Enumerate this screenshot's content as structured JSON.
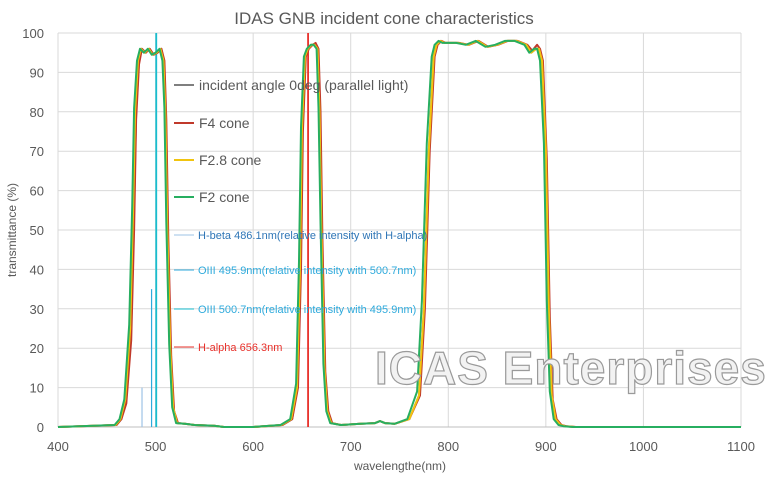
{
  "chart_data": {
    "type": "line",
    "title": "IDAS GNB incident cone characteristics",
    "xlabel": "wavelengthe(nm)",
    "ylabel": "transmittance (%)",
    "xlim": [
      400,
      1100
    ],
    "ylim": [
      0,
      100
    ],
    "xticks": [
      400,
      500,
      600,
      700,
      800,
      900,
      1000,
      1100
    ],
    "yticks": [
      0,
      10,
      20,
      30,
      40,
      50,
      60,
      70,
      80,
      90,
      100
    ],
    "grid": true,
    "legend_position": "inside-left",
    "watermark": "ICAS Enterprises",
    "series": [
      {
        "name": "incident angle 0deg (parallel light)",
        "color": "#7f7f7f",
        "x": [
          400,
          460,
          465,
          470,
          475,
          478,
          480,
          483,
          486,
          490,
          494,
          498,
          502,
          506,
          508,
          510,
          512,
          515,
          518,
          522,
          530,
          540,
          560,
          570,
          600,
          630,
          640,
          645,
          648,
          650,
          653,
          656,
          660,
          663,
          666,
          668,
          670,
          673,
          676,
          680,
          690,
          710,
          725,
          730,
          735,
          745,
          760,
          770,
          775,
          780,
          785,
          788,
          792,
          796,
          800,
          810,
          820,
          830,
          840,
          850,
          860,
          870,
          880,
          885,
          890,
          893,
          896,
          900,
          903,
          906,
          910,
          915,
          920,
          930,
          950,
          1100
        ],
        "y": [
          0,
          0.5,
          2,
          7,
          25,
          55,
          80,
          93,
          96,
          95,
          96,
          94.5,
          95,
          96,
          93,
          80,
          50,
          20,
          5,
          1,
          0.8,
          0.5,
          0.3,
          0,
          0,
          0.5,
          2,
          10,
          40,
          75,
          94,
          96,
          97,
          97,
          96,
          80,
          50,
          15,
          4,
          1,
          0.5,
          0.8,
          1,
          1.5,
          1,
          0.8,
          2,
          8,
          30,
          70,
          94,
          97,
          98,
          97.5,
          97.5,
          97.5,
          97,
          98,
          96.5,
          97,
          98,
          98,
          97,
          95,
          96,
          96,
          93,
          70,
          30,
          8,
          2,
          0.5,
          0.2,
          0,
          0,
          0
        ]
      },
      {
        "name": "F4 cone",
        "color": "#c0392b",
        "x": [
          400,
          460,
          465,
          470,
          475,
          478,
          480,
          483,
          486,
          490,
          494,
          498,
          502,
          506,
          509,
          511,
          513,
          516,
          519,
          523,
          530,
          540,
          560,
          570,
          600,
          630,
          640,
          646,
          649,
          651,
          654,
          657,
          661,
          664,
          667,
          669,
          671,
          674,
          677,
          681,
          690,
          710,
          725,
          730,
          735,
          745,
          760,
          771,
          776,
          781,
          786,
          789,
          793,
          797,
          801,
          811,
          821,
          831,
          841,
          851,
          861,
          871,
          881,
          886,
          891,
          894,
          897,
          901,
          904,
          907,
          911,
          916,
          921,
          931,
          950,
          1100
        ],
        "y": [
          0,
          0.5,
          2,
          6,
          22,
          50,
          78,
          92,
          96,
          95,
          96,
          94.5,
          95,
          96,
          93,
          78,
          48,
          18,
          4,
          1,
          0.8,
          0.5,
          0.3,
          0,
          0,
          0.5,
          2,
          10,
          40,
          75,
          94,
          96,
          97,
          97.5,
          96,
          80,
          48,
          14,
          4,
          1,
          0.5,
          0.8,
          1,
          1.5,
          1,
          0.8,
          2,
          8,
          30,
          70,
          94,
          97,
          98,
          97.5,
          97.5,
          97.5,
          97,
          98,
          96.5,
          97,
          98,
          98,
          97,
          95.5,
          97,
          96,
          93,
          68,
          28,
          7,
          2,
          0.5,
          0.2,
          0,
          0,
          0
        ]
      },
      {
        "name": "F2.8 cone",
        "color": "#f1c40f",
        "x": [
          400,
          459,
          464,
          469,
          474,
          477,
          479,
          482,
          485,
          489,
          493,
          497,
          501,
          505,
          508,
          510,
          512,
          515,
          518,
          522,
          530,
          540,
          560,
          570,
          600,
          629,
          639,
          645,
          648,
          650,
          653,
          656,
          660,
          663,
          666,
          668,
          670,
          673,
          676,
          680,
          690,
          710,
          725,
          730,
          735,
          745,
          760,
          770,
          775,
          780,
          785,
          788,
          792,
          796,
          800,
          810,
          820,
          830,
          840,
          850,
          860,
          870,
          880,
          885,
          890,
          893,
          896,
          900,
          903,
          906,
          910,
          915,
          920,
          930,
          950,
          1100
        ],
        "y": [
          0,
          0.5,
          2,
          7,
          25,
          55,
          80,
          93,
          96,
          95,
          96,
          94.5,
          95,
          96,
          93,
          80,
          50,
          20,
          5,
          1,
          0.8,
          0.5,
          0.3,
          0,
          0,
          0.5,
          2,
          10,
          40,
          75,
          94,
          96,
          97,
          97,
          96,
          80,
          50,
          15,
          4,
          1,
          0.5,
          0.8,
          1,
          1.5,
          1,
          0.8,
          2,
          8,
          30,
          70,
          94,
          97,
          98,
          97.5,
          97.5,
          97.5,
          97,
          98,
          96.5,
          97,
          98,
          98,
          97,
          95,
          96,
          96,
          93,
          70,
          30,
          8,
          2,
          0.5,
          0.2,
          0,
          0,
          0
        ]
      },
      {
        "name": "F2 cone",
        "color": "#27ae60",
        "x": [
          400,
          458,
          463,
          468,
          473,
          476,
          478,
          481,
          484,
          488,
          492,
          496,
          500,
          504,
          507,
          509,
          511,
          514,
          517,
          521,
          530,
          540,
          560,
          570,
          600,
          628,
          638,
          644,
          647,
          649,
          652,
          655,
          659,
          662,
          665,
          667,
          669,
          672,
          675,
          679,
          690,
          710,
          725,
          730,
          735,
          745,
          758,
          768,
          773,
          778,
          783,
          786,
          790,
          794,
          798,
          808,
          818,
          828,
          838,
          848,
          858,
          868,
          878,
          883,
          888,
          891,
          894,
          898,
          901,
          904,
          908,
          913,
          918,
          928,
          950,
          1100
        ],
        "y": [
          0,
          0.5,
          2,
          7,
          26,
          56,
          81,
          93,
          96,
          95,
          96,
          94.5,
          95,
          96,
          93,
          81,
          52,
          21,
          5,
          1,
          0.8,
          0.5,
          0.3,
          0,
          0,
          0.5,
          2,
          11,
          42,
          76,
          94,
          96,
          97,
          97,
          96,
          81,
          52,
          16,
          4,
          1,
          0.5,
          0.8,
          1,
          1.5,
          1,
          0.8,
          2,
          9,
          32,
          72,
          94,
          97,
          98,
          97.5,
          97.5,
          97.5,
          97,
          98,
          96.5,
          97,
          98,
          98,
          97,
          95,
          96,
          96,
          93,
          72,
          32,
          9,
          2,
          0.5,
          0.2,
          0,
          0,
          0
        ]
      },
      {
        "name": "H-beta 486.1nm(relative intensity with H-alpha)",
        "color": "#9dc3e6",
        "type": "vline",
        "x": 486.1,
        "y": 10
      },
      {
        "name": "OIII 495.9nm(relative intensity with 500.7nm)",
        "color": "#2eaadc",
        "type": "vline",
        "x": 495.9,
        "y": 35
      },
      {
        "name": "OIII 500.7nm(relative intensity with 495.9nm)",
        "color": "#17becf",
        "type": "vline",
        "x": 500.7,
        "y": 100
      },
      {
        "name": "H-alpha 656.3nm",
        "color": "#e8302a",
        "type": "vline",
        "x": 656.3,
        "y": 100
      }
    ]
  },
  "legend": [
    {
      "label": "incident angle 0deg (parallel light)",
      "color": "#595959",
      "line": "#7f7f7f"
    },
    {
      "label": "F4 cone",
      "color": "#595959",
      "line": "#c0392b"
    },
    {
      "label": "F2.8 cone",
      "color": "#595959",
      "line": "#f1c40f"
    },
    {
      "label": "F2 cone",
      "color": "#595959",
      "line": "#27ae60"
    },
    {
      "label": "H-beta 486.1nm(relative intensity with H-alpha)",
      "color": "#2e75b6",
      "line": "#9dc3e6"
    },
    {
      "label": "OIII 495.9nm(relative intensity with 500.7nm)",
      "color": "#2eaadc",
      "line": "#2eaadc"
    },
    {
      "label": "OIII 500.7nm(relative intensity with 495.9nm)",
      "color": "#2eaadc",
      "line": "#17becf"
    },
    {
      "label": "H-alpha 656.3nm",
      "color": "#e8302a",
      "line": "#e8302a"
    }
  ]
}
